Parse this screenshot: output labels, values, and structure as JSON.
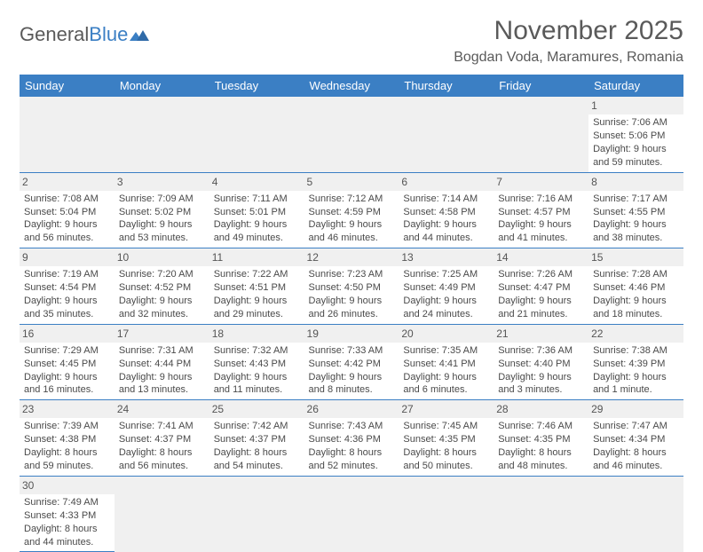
{
  "brand": {
    "general": "General",
    "blue": "Blue"
  },
  "title": "November 2025",
  "location": "Bogdan Voda, Maramures, Romania",
  "colors": {
    "header_bg": "#3b7fc4",
    "text": "#4a4a4a",
    "row_divider": "#3b7fc4",
    "empty_bg": "#f0f0f0"
  },
  "weekdays": [
    "Sunday",
    "Monday",
    "Tuesday",
    "Wednesday",
    "Thursday",
    "Friday",
    "Saturday"
  ],
  "weeks": [
    [
      null,
      null,
      null,
      null,
      null,
      null,
      {
        "n": "1",
        "sr": "Sunrise: 7:06 AM",
        "ss": "Sunset: 5:06 PM",
        "dl": "Daylight: 9 hours and 59 minutes."
      }
    ],
    [
      {
        "n": "2",
        "sr": "Sunrise: 7:08 AM",
        "ss": "Sunset: 5:04 PM",
        "dl": "Daylight: 9 hours and 56 minutes."
      },
      {
        "n": "3",
        "sr": "Sunrise: 7:09 AM",
        "ss": "Sunset: 5:02 PM",
        "dl": "Daylight: 9 hours and 53 minutes."
      },
      {
        "n": "4",
        "sr": "Sunrise: 7:11 AM",
        "ss": "Sunset: 5:01 PM",
        "dl": "Daylight: 9 hours and 49 minutes."
      },
      {
        "n": "5",
        "sr": "Sunrise: 7:12 AM",
        "ss": "Sunset: 4:59 PM",
        "dl": "Daylight: 9 hours and 46 minutes."
      },
      {
        "n": "6",
        "sr": "Sunrise: 7:14 AM",
        "ss": "Sunset: 4:58 PM",
        "dl": "Daylight: 9 hours and 44 minutes."
      },
      {
        "n": "7",
        "sr": "Sunrise: 7:16 AM",
        "ss": "Sunset: 4:57 PM",
        "dl": "Daylight: 9 hours and 41 minutes."
      },
      {
        "n": "8",
        "sr": "Sunrise: 7:17 AM",
        "ss": "Sunset: 4:55 PM",
        "dl": "Daylight: 9 hours and 38 minutes."
      }
    ],
    [
      {
        "n": "9",
        "sr": "Sunrise: 7:19 AM",
        "ss": "Sunset: 4:54 PM",
        "dl": "Daylight: 9 hours and 35 minutes."
      },
      {
        "n": "10",
        "sr": "Sunrise: 7:20 AM",
        "ss": "Sunset: 4:52 PM",
        "dl": "Daylight: 9 hours and 32 minutes."
      },
      {
        "n": "11",
        "sr": "Sunrise: 7:22 AM",
        "ss": "Sunset: 4:51 PM",
        "dl": "Daylight: 9 hours and 29 minutes."
      },
      {
        "n": "12",
        "sr": "Sunrise: 7:23 AM",
        "ss": "Sunset: 4:50 PM",
        "dl": "Daylight: 9 hours and 26 minutes."
      },
      {
        "n": "13",
        "sr": "Sunrise: 7:25 AM",
        "ss": "Sunset: 4:49 PM",
        "dl": "Daylight: 9 hours and 24 minutes."
      },
      {
        "n": "14",
        "sr": "Sunrise: 7:26 AM",
        "ss": "Sunset: 4:47 PM",
        "dl": "Daylight: 9 hours and 21 minutes."
      },
      {
        "n": "15",
        "sr": "Sunrise: 7:28 AM",
        "ss": "Sunset: 4:46 PM",
        "dl": "Daylight: 9 hours and 18 minutes."
      }
    ],
    [
      {
        "n": "16",
        "sr": "Sunrise: 7:29 AM",
        "ss": "Sunset: 4:45 PM",
        "dl": "Daylight: 9 hours and 16 minutes."
      },
      {
        "n": "17",
        "sr": "Sunrise: 7:31 AM",
        "ss": "Sunset: 4:44 PM",
        "dl": "Daylight: 9 hours and 13 minutes."
      },
      {
        "n": "18",
        "sr": "Sunrise: 7:32 AM",
        "ss": "Sunset: 4:43 PM",
        "dl": "Daylight: 9 hours and 11 minutes."
      },
      {
        "n": "19",
        "sr": "Sunrise: 7:33 AM",
        "ss": "Sunset: 4:42 PM",
        "dl": "Daylight: 9 hours and 8 minutes."
      },
      {
        "n": "20",
        "sr": "Sunrise: 7:35 AM",
        "ss": "Sunset: 4:41 PM",
        "dl": "Daylight: 9 hours and 6 minutes."
      },
      {
        "n": "21",
        "sr": "Sunrise: 7:36 AM",
        "ss": "Sunset: 4:40 PM",
        "dl": "Daylight: 9 hours and 3 minutes."
      },
      {
        "n": "22",
        "sr": "Sunrise: 7:38 AM",
        "ss": "Sunset: 4:39 PM",
        "dl": "Daylight: 9 hours and 1 minute."
      }
    ],
    [
      {
        "n": "23",
        "sr": "Sunrise: 7:39 AM",
        "ss": "Sunset: 4:38 PM",
        "dl": "Daylight: 8 hours and 59 minutes."
      },
      {
        "n": "24",
        "sr": "Sunrise: 7:41 AM",
        "ss": "Sunset: 4:37 PM",
        "dl": "Daylight: 8 hours and 56 minutes."
      },
      {
        "n": "25",
        "sr": "Sunrise: 7:42 AM",
        "ss": "Sunset: 4:37 PM",
        "dl": "Daylight: 8 hours and 54 minutes."
      },
      {
        "n": "26",
        "sr": "Sunrise: 7:43 AM",
        "ss": "Sunset: 4:36 PM",
        "dl": "Daylight: 8 hours and 52 minutes."
      },
      {
        "n": "27",
        "sr": "Sunrise: 7:45 AM",
        "ss": "Sunset: 4:35 PM",
        "dl": "Daylight: 8 hours and 50 minutes."
      },
      {
        "n": "28",
        "sr": "Sunrise: 7:46 AM",
        "ss": "Sunset: 4:35 PM",
        "dl": "Daylight: 8 hours and 48 minutes."
      },
      {
        "n": "29",
        "sr": "Sunrise: 7:47 AM",
        "ss": "Sunset: 4:34 PM",
        "dl": "Daylight: 8 hours and 46 minutes."
      }
    ],
    [
      {
        "n": "30",
        "sr": "Sunrise: 7:49 AM",
        "ss": "Sunset: 4:33 PM",
        "dl": "Daylight: 8 hours and 44 minutes."
      },
      null,
      null,
      null,
      null,
      null,
      null
    ]
  ]
}
